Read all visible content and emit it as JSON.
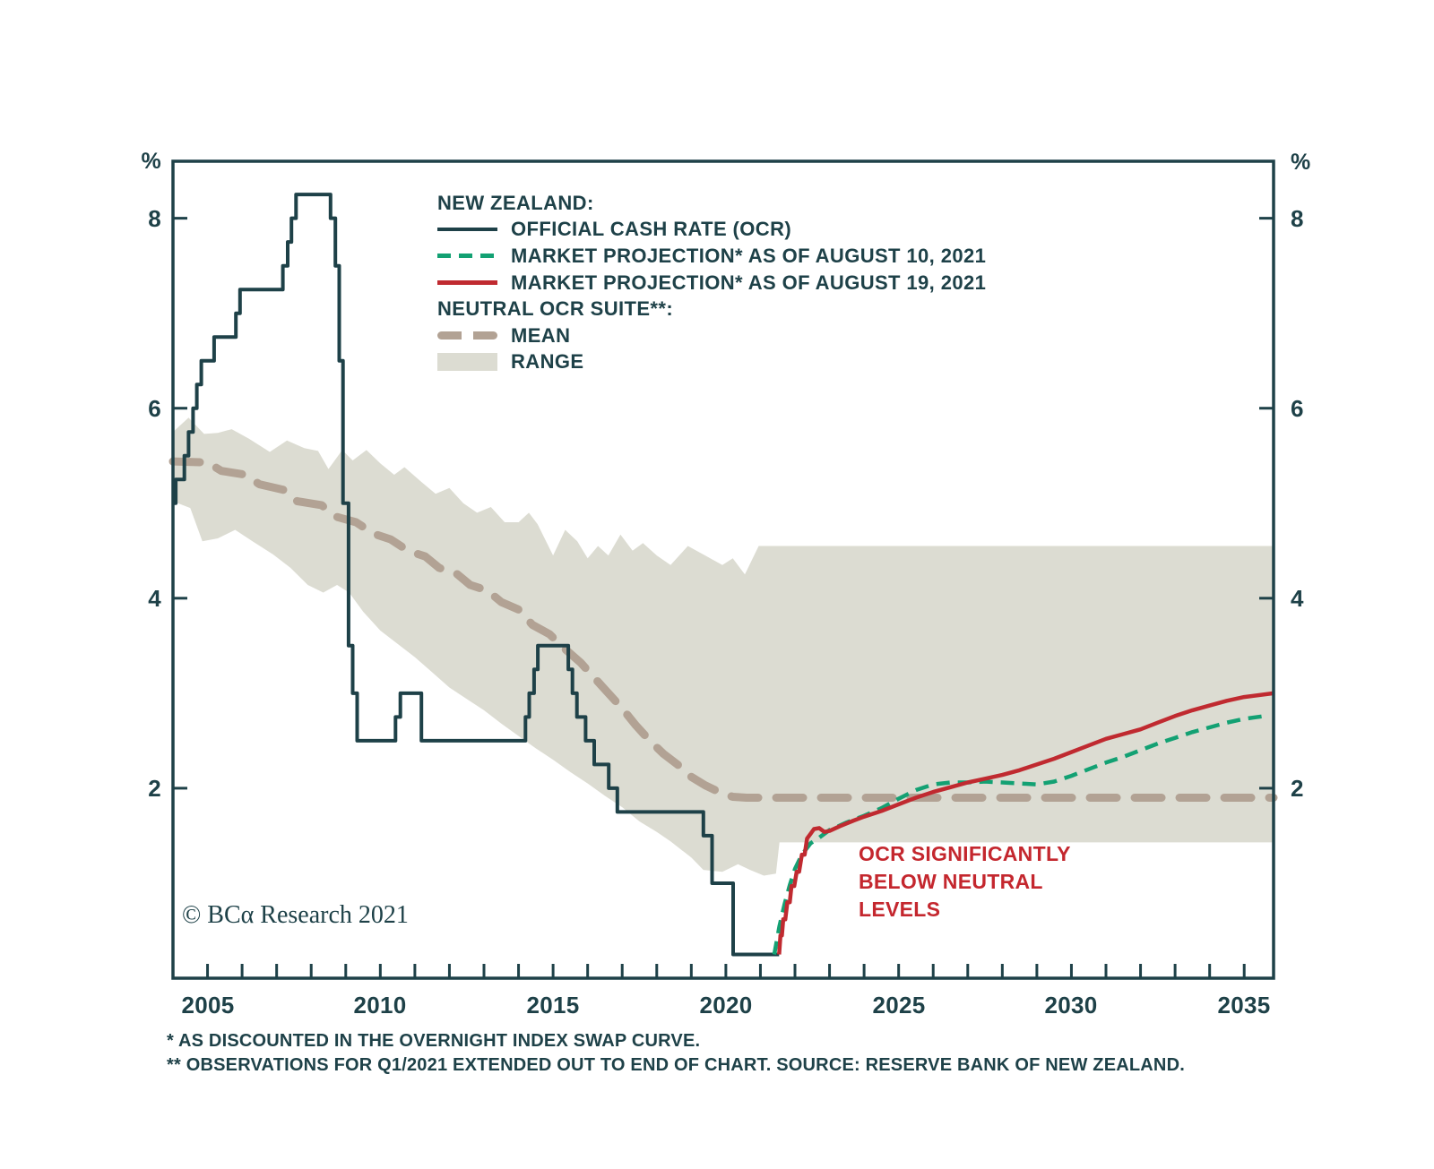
{
  "figure": {
    "background": "#ffffff",
    "ink": "#1e4148"
  },
  "legend": {
    "group1_header": "NEW ZEALAND:",
    "group2_header": "NEUTRAL OCR SUITE**:",
    "items": [
      {
        "label": "OFFICIAL CASH RATE (OCR)",
        "color": "#1e4148",
        "swatch": "solid-line"
      },
      {
        "label": "MARKET PROJECTION* AS OF AUGUST 10, 2021",
        "color": "#13a173",
        "swatch": "dashed-line"
      },
      {
        "label": "MARKET PROJECTION* AS OF AUGUST 19, 2021",
        "color": "#c02a30",
        "swatch": "solid-line"
      },
      {
        "label": "MEAN",
        "color": "#b2a294",
        "swatch": "thick-dashed-line"
      },
      {
        "label": "RANGE",
        "color": "#dcdcd2",
        "swatch": "filled-box"
      }
    ]
  },
  "annotation": {
    "line1": "OCR SIGNIFICANTLY",
    "line2": "BELOW NEUTRAL",
    "line3": "LEVELS",
    "color": "#c4272e"
  },
  "copyright": "© BCα Research 2021",
  "footnotes": {
    "line1": "*  AS DISCOUNTED IN THE OVERNIGHT INDEX SWAP CURVE.",
    "line2": "** OBSERVATIONS FOR Q1/2021 EXTENDED OUT TO END OF CHART. SOURCE: RESERVE BANK OF NEW ZEALAND."
  },
  "chart_data": {
    "type": "line",
    "title": "",
    "xlabel": "",
    "ylabel": "%",
    "y_unit_left": "%",
    "y_unit_right": "%",
    "xlim": [
      2004.0,
      2035.85
    ],
    "ylim": [
      0,
      8.6
    ],
    "y_ticks": [
      2,
      4,
      6,
      8
    ],
    "x_tick_years_minor_step": 1,
    "x_label_years": [
      2005,
      2010,
      2015,
      2020,
      2025,
      2030,
      2035
    ],
    "grid": false,
    "legend_position": "top-left-inside",
    "band": {
      "name": "NEUTRAL OCR RANGE",
      "color": "#dcdcd2",
      "top": [
        [
          2004.0,
          5.75
        ],
        [
          2004.45,
          5.9
        ],
        [
          2004.9,
          5.73
        ],
        [
          2005.3,
          5.74
        ],
        [
          2005.7,
          5.78
        ],
        [
          2006.2,
          5.68
        ],
        [
          2006.8,
          5.54
        ],
        [
          2007.3,
          5.66
        ],
        [
          2007.8,
          5.58
        ],
        [
          2008.2,
          5.55
        ],
        [
          2008.5,
          5.36
        ],
        [
          2008.9,
          5.56
        ],
        [
          2009.2,
          5.45
        ],
        [
          2009.6,
          5.56
        ],
        [
          2010.0,
          5.42
        ],
        [
          2010.4,
          5.3
        ],
        [
          2010.7,
          5.38
        ],
        [
          2011.2,
          5.22
        ],
        [
          2011.6,
          5.1
        ],
        [
          2012.0,
          5.16
        ],
        [
          2012.4,
          5.0
        ],
        [
          2012.8,
          4.9
        ],
        [
          2013.2,
          4.96
        ],
        [
          2013.6,
          4.8
        ],
        [
          2014.0,
          4.8
        ],
        [
          2014.3,
          4.9
        ],
        [
          2014.55,
          4.78
        ],
        [
          2015.0,
          4.45
        ],
        [
          2015.35,
          4.72
        ],
        [
          2015.7,
          4.6
        ],
        [
          2016.0,
          4.42
        ],
        [
          2016.3,
          4.55
        ],
        [
          2016.6,
          4.45
        ],
        [
          2016.95,
          4.67
        ],
        [
          2017.3,
          4.5
        ],
        [
          2017.6,
          4.58
        ],
        [
          2018.0,
          4.45
        ],
        [
          2018.4,
          4.35
        ],
        [
          2018.9,
          4.55
        ],
        [
          2019.4,
          4.45
        ],
        [
          2019.9,
          4.35
        ],
        [
          2020.2,
          4.42
        ],
        [
          2020.55,
          4.25
        ],
        [
          2020.95,
          4.55
        ],
        [
          2035.85,
          4.55
        ]
      ],
      "bottom": [
        [
          2004.0,
          5.02
        ],
        [
          2004.5,
          4.95
        ],
        [
          2004.85,
          4.6
        ],
        [
          2005.3,
          4.63
        ],
        [
          2005.8,
          4.72
        ],
        [
          2006.3,
          4.6
        ],
        [
          2006.9,
          4.46
        ],
        [
          2007.4,
          4.32
        ],
        [
          2007.9,
          4.14
        ],
        [
          2008.35,
          4.06
        ],
        [
          2008.75,
          4.14
        ],
        [
          2009.1,
          4.06
        ],
        [
          2009.5,
          3.86
        ],
        [
          2010.0,
          3.66
        ],
        [
          2010.5,
          3.52
        ],
        [
          2011.0,
          3.38
        ],
        [
          2011.5,
          3.22
        ],
        [
          2012.0,
          3.06
        ],
        [
          2012.5,
          2.94
        ],
        [
          2013.0,
          2.82
        ],
        [
          2013.5,
          2.68
        ],
        [
          2014.0,
          2.55
        ],
        [
          2014.5,
          2.42
        ],
        [
          2015.0,
          2.3
        ],
        [
          2015.5,
          2.17
        ],
        [
          2016.0,
          2.05
        ],
        [
          2016.5,
          1.92
        ],
        [
          2017.0,
          1.8
        ],
        [
          2017.5,
          1.65
        ],
        [
          2018.0,
          1.54
        ],
        [
          2018.4,
          1.44
        ],
        [
          2019.0,
          1.27
        ],
        [
          2019.35,
          1.14
        ],
        [
          2019.9,
          1.12
        ],
        [
          2020.35,
          1.2
        ],
        [
          2020.7,
          1.14
        ],
        [
          2021.1,
          1.08
        ],
        [
          2021.45,
          1.1
        ],
        [
          2021.55,
          1.43
        ],
        [
          2035.85,
          1.43
        ]
      ]
    },
    "series": [
      {
        "name": "MEAN (NEUTRAL OCR SUITE)",
        "type": "line",
        "color": "#b2a294",
        "width": 9,
        "dash": "30 20",
        "cap": "round",
        "points": [
          [
            2004.0,
            5.44
          ],
          [
            2005.0,
            5.43
          ],
          [
            2005.4,
            5.34
          ],
          [
            2006.1,
            5.3
          ],
          [
            2006.5,
            5.2
          ],
          [
            2007.2,
            5.14
          ],
          [
            2007.6,
            5.02
          ],
          [
            2008.3,
            4.98
          ],
          [
            2008.7,
            4.86
          ],
          [
            2009.3,
            4.8
          ],
          [
            2009.8,
            4.68
          ],
          [
            2010.3,
            4.62
          ],
          [
            2010.8,
            4.5
          ],
          [
            2011.3,
            4.44
          ],
          [
            2011.7,
            4.32
          ],
          [
            2012.2,
            4.26
          ],
          [
            2012.6,
            4.14
          ],
          [
            2013.1,
            4.08
          ],
          [
            2013.5,
            3.96
          ],
          [
            2014.0,
            3.88
          ],
          [
            2014.4,
            3.72
          ],
          [
            2014.9,
            3.62
          ],
          [
            2015.3,
            3.48
          ],
          [
            2015.8,
            3.32
          ],
          [
            2016.2,
            3.16
          ],
          [
            2016.6,
            3.0
          ],
          [
            2017.0,
            2.84
          ],
          [
            2017.4,
            2.66
          ],
          [
            2017.8,
            2.5
          ],
          [
            2018.2,
            2.36
          ],
          [
            2018.6,
            2.25
          ],
          [
            2019.0,
            2.12
          ],
          [
            2019.4,
            2.03
          ],
          [
            2019.8,
            1.96
          ],
          [
            2020.2,
            1.91
          ],
          [
            2020.6,
            1.9
          ],
          [
            2035.85,
            1.9
          ]
        ]
      },
      {
        "name": "OFFICIAL CASH RATE (OCR)",
        "type": "step",
        "color": "#1e4148",
        "width": 4,
        "points": [
          [
            2004.0,
            5.0
          ],
          [
            2004.08,
            5.25
          ],
          [
            2004.33,
            5.5
          ],
          [
            2004.45,
            5.75
          ],
          [
            2004.58,
            6.0
          ],
          [
            2004.69,
            6.25
          ],
          [
            2004.82,
            6.5
          ],
          [
            2005.19,
            6.75
          ],
          [
            2005.82,
            7.0
          ],
          [
            2005.94,
            7.25
          ],
          [
            2007.18,
            7.5
          ],
          [
            2007.32,
            7.75
          ],
          [
            2007.43,
            8.0
          ],
          [
            2007.56,
            8.25
          ],
          [
            2008.56,
            8.0
          ],
          [
            2008.7,
            7.5
          ],
          [
            2008.81,
            6.5
          ],
          [
            2008.92,
            5.0
          ],
          [
            2009.08,
            3.5
          ],
          [
            2009.2,
            3.0
          ],
          [
            2009.33,
            2.5
          ],
          [
            2010.44,
            2.75
          ],
          [
            2010.58,
            3.0
          ],
          [
            2011.19,
            2.5
          ],
          [
            2014.2,
            2.75
          ],
          [
            2014.31,
            3.0
          ],
          [
            2014.45,
            3.25
          ],
          [
            2014.56,
            3.5
          ],
          [
            2015.44,
            3.25
          ],
          [
            2015.56,
            3.0
          ],
          [
            2015.69,
            2.75
          ],
          [
            2015.94,
            2.5
          ],
          [
            2016.19,
            2.25
          ],
          [
            2016.61,
            2.0
          ],
          [
            2016.86,
            1.75
          ],
          [
            2019.35,
            1.5
          ],
          [
            2019.6,
            1.0
          ],
          [
            2020.21,
            0.25
          ],
          [
            2021.54,
            0.25
          ]
        ]
      },
      {
        "name": "MARKET PROJECTION AS OF AUGUST 10, 2021",
        "type": "line",
        "color": "#13a173",
        "width": 4.5,
        "dash": "15 9",
        "cap": "butt",
        "points": [
          [
            2021.4,
            0.25
          ],
          [
            2021.55,
            0.55
          ],
          [
            2021.7,
            0.78
          ],
          [
            2021.85,
            0.98
          ],
          [
            2022.0,
            1.15
          ],
          [
            2022.2,
            1.3
          ],
          [
            2022.45,
            1.42
          ],
          [
            2022.7,
            1.48
          ],
          [
            2023.0,
            1.56
          ],
          [
            2023.5,
            1.64
          ],
          [
            2024.0,
            1.71
          ],
          [
            2024.5,
            1.79
          ],
          [
            2025.0,
            1.89
          ],
          [
            2025.5,
            1.98
          ],
          [
            2026.0,
            2.04
          ],
          [
            2026.5,
            2.06
          ],
          [
            2027.0,
            2.06
          ],
          [
            2027.5,
            2.07
          ],
          [
            2028.0,
            2.06
          ],
          [
            2028.5,
            2.05
          ],
          [
            2029.0,
            2.04
          ],
          [
            2029.5,
            2.07
          ],
          [
            2030.0,
            2.13
          ],
          [
            2030.5,
            2.2
          ],
          [
            2031.0,
            2.27
          ],
          [
            2031.5,
            2.33
          ],
          [
            2032.0,
            2.4
          ],
          [
            2032.5,
            2.47
          ],
          [
            2033.0,
            2.53
          ],
          [
            2033.5,
            2.59
          ],
          [
            2034.0,
            2.64
          ],
          [
            2034.5,
            2.69
          ],
          [
            2035.0,
            2.73
          ],
          [
            2035.6,
            2.76
          ]
        ]
      },
      {
        "name": "MARKET PROJECTION AS OF AUGUST 19, 2021",
        "type": "line",
        "color": "#c02a30",
        "width": 4.5,
        "points": [
          [
            2021.54,
            0.25
          ],
          [
            2021.58,
            0.45
          ],
          [
            2021.62,
            0.45
          ],
          [
            2021.66,
            0.62
          ],
          [
            2021.72,
            0.62
          ],
          [
            2021.78,
            0.8
          ],
          [
            2021.85,
            0.8
          ],
          [
            2021.9,
            0.97
          ],
          [
            2021.98,
            0.97
          ],
          [
            2022.05,
            1.12
          ],
          [
            2022.12,
            1.12
          ],
          [
            2022.2,
            1.3
          ],
          [
            2022.28,
            1.3
          ],
          [
            2022.35,
            1.47
          ],
          [
            2022.45,
            1.52
          ],
          [
            2022.55,
            1.57
          ],
          [
            2022.7,
            1.58
          ],
          [
            2022.85,
            1.54
          ],
          [
            2023.0,
            1.55
          ],
          [
            2023.3,
            1.6
          ],
          [
            2023.7,
            1.66
          ],
          [
            2024.0,
            1.7
          ],
          [
            2024.5,
            1.76
          ],
          [
            2025.0,
            1.83
          ],
          [
            2025.5,
            1.9
          ],
          [
            2026.0,
            1.96
          ],
          [
            2026.5,
            2.01
          ],
          [
            2027.0,
            2.06
          ],
          [
            2027.5,
            2.1
          ],
          [
            2028.0,
            2.14
          ],
          [
            2028.5,
            2.19
          ],
          [
            2029.0,
            2.25
          ],
          [
            2029.5,
            2.31
          ],
          [
            2030.0,
            2.38
          ],
          [
            2030.5,
            2.45
          ],
          [
            2031.0,
            2.52
          ],
          [
            2031.5,
            2.57
          ],
          [
            2032.0,
            2.62
          ],
          [
            2032.5,
            2.69
          ],
          [
            2033.0,
            2.76
          ],
          [
            2033.5,
            2.82
          ],
          [
            2034.0,
            2.87
          ],
          [
            2034.5,
            2.92
          ],
          [
            2035.0,
            2.96
          ],
          [
            2035.85,
            3.0
          ]
        ]
      }
    ]
  }
}
